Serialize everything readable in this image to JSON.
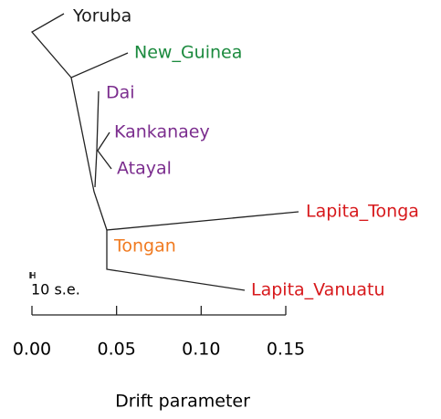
{
  "nodes": [
    {
      "label": "Yoruba",
      "color": "#1a1a1a"
    },
    {
      "label": "New_Guinea",
      "color": "#1b8a3e"
    },
    {
      "label": "Dai",
      "color": "#7b2d8e"
    },
    {
      "label": "Kankanaey",
      "color": "#7b2d8e"
    },
    {
      "label": "Atayal",
      "color": "#7b2d8e"
    },
    {
      "label": "Lapita_Tonga",
      "color": "#d7191c"
    },
    {
      "label": "Tongan",
      "color": "#f07a20"
    },
    {
      "label": "Lapita_Vanuatu",
      "color": "#d7191c"
    }
  ],
  "scale_label": "10 s.e.",
  "axis": {
    "label": "Drift parameter",
    "xlim": [
      0,
      0.15
    ],
    "xticks": [
      {
        "value": 0,
        "label": "0.00"
      },
      {
        "value": 0.05,
        "label": "0.05"
      },
      {
        "value": 0.1,
        "label": "0.10"
      },
      {
        "value": 0.15,
        "label": "0.15"
      }
    ]
  }
}
